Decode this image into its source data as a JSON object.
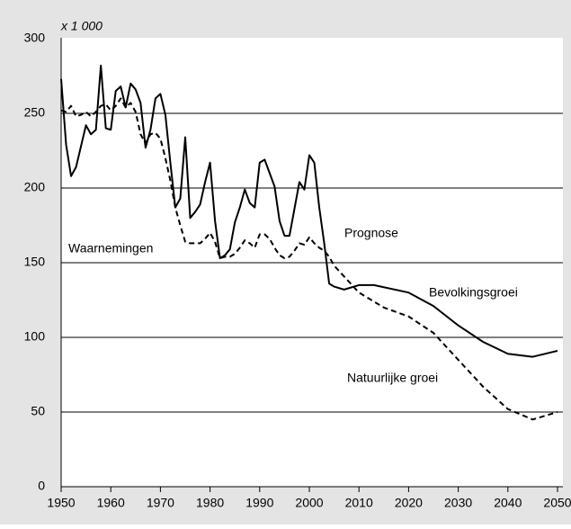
{
  "chart_data": {
    "type": "line",
    "unit_label": "x 1 000",
    "annotations": [
      "Waarnemingen",
      "Prognose"
    ],
    "series": [
      {
        "name": "Bevolkingsgroei",
        "color": "#000000",
        "dash": false,
        "x": [
          1950,
          1951,
          1952,
          1953,
          1954,
          1955,
          1956,
          1957,
          1958,
          1959,
          1960,
          1961,
          1962,
          1963,
          1964,
          1965,
          1966,
          1967,
          1968,
          1969,
          1970,
          1971,
          1972,
          1973,
          1974,
          1975,
          1976,
          1977,
          1978,
          1979,
          1980,
          1981,
          1982,
          1983,
          1984,
          1985,
          1986,
          1987,
          1988,
          1989,
          1990,
          1991,
          1992,
          1993,
          1994,
          1995,
          1996,
          1997,
          1998,
          1999,
          2000,
          2001,
          2002,
          2003,
          2004,
          2005,
          2007,
          2010,
          2013,
          2020,
          2025,
          2030,
          2035,
          2040,
          2045,
          2050
        ],
        "values": [
          273,
          229,
          208,
          214,
          228,
          242,
          236,
          239,
          282,
          240,
          239,
          265,
          268,
          254,
          270,
          266,
          257,
          227,
          239,
          260,
          263,
          249,
          217,
          187,
          193,
          234,
          180,
          184,
          189,
          204,
          217,
          178,
          153,
          155,
          159,
          177,
          187,
          199,
          190,
          187,
          217,
          219,
          210,
          201,
          178,
          168,
          168,
          186,
          204,
          199,
          222,
          217,
          187,
          163,
          136,
          134,
          132,
          135,
          135,
          130,
          121,
          108,
          97,
          89,
          87,
          91
        ]
      },
      {
        "name": "Natuurlijke groei",
        "color": "#000000",
        "dash": true,
        "x": [
          1950,
          1951,
          1952,
          1953,
          1954,
          1955,
          1956,
          1957,
          1958,
          1959,
          1960,
          1961,
          1962,
          1963,
          1964,
          1965,
          1966,
          1967,
          1968,
          1969,
          1970,
          1971,
          1972,
          1973,
          1974,
          1975,
          1976,
          1977,
          1978,
          1979,
          1980,
          1981,
          1982,
          1983,
          1984,
          1985,
          1986,
          1987,
          1988,
          1989,
          1990,
          1991,
          1992,
          1993,
          1994,
          1995,
          1996,
          1997,
          1998,
          1999,
          2000,
          2001,
          2002,
          2003,
          2004,
          2005,
          2010,
          2015,
          2020,
          2025,
          2030,
          2035,
          2040,
          2045,
          2050
        ],
        "values": [
          252,
          251,
          255,
          248,
          249,
          251,
          248,
          251,
          255,
          256,
          252,
          255,
          260,
          254,
          257,
          251,
          236,
          230,
          236,
          237,
          233,
          220,
          205,
          187,
          175,
          164,
          163,
          163,
          163,
          166,
          170,
          164,
          153,
          154,
          154,
          156,
          160,
          165,
          163,
          160,
          169,
          169,
          166,
          160,
          155,
          153,
          154,
          158,
          163,
          162,
          167,
          163,
          160,
          158,
          154,
          148,
          130,
          120,
          114,
          103,
          85,
          67,
          52,
          45,
          50
        ]
      }
    ],
    "xlim": [
      1950,
      2050
    ],
    "xticks": [
      1950,
      1960,
      1970,
      1980,
      1990,
      2000,
      2010,
      2020,
      2030,
      2040,
      2050
    ],
    "ylim": [
      0,
      300
    ],
    "yticks": [
      0,
      50,
      100,
      150,
      200,
      250,
      300
    ],
    "grid": true
  }
}
